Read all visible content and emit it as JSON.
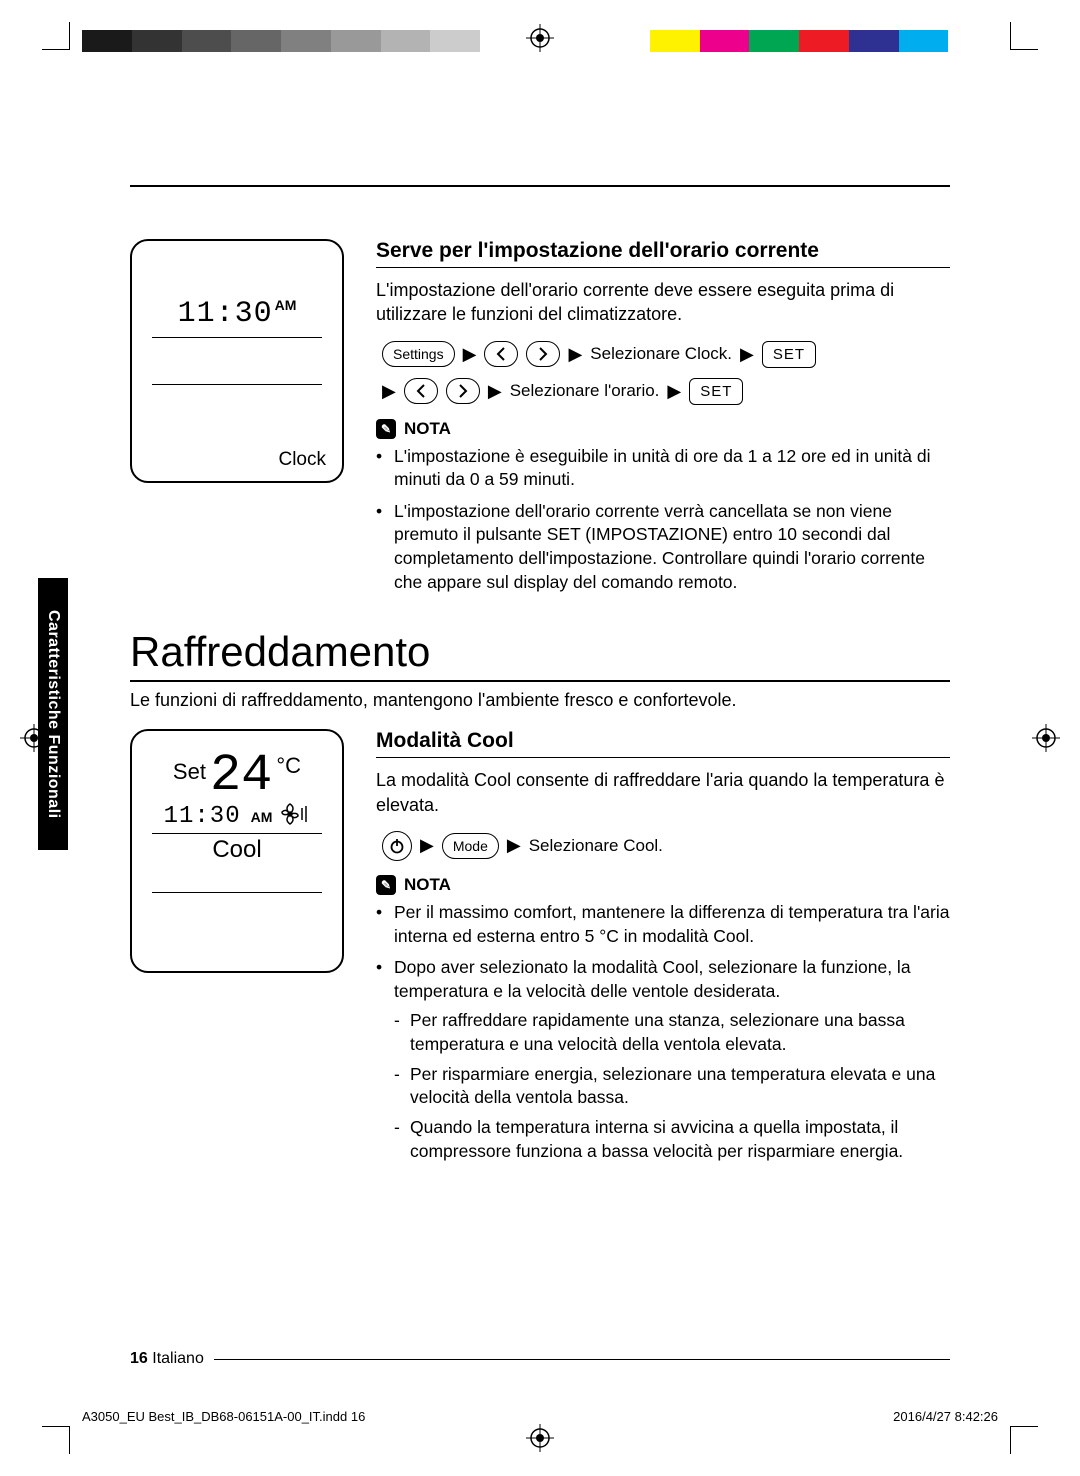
{
  "print": {
    "color_bar": [
      "#1a1a1a",
      "#333333",
      "#4d4d4d",
      "#666666",
      "#808080",
      "#999999",
      "#b3b3b3",
      "#cccccc",
      "#ffffff",
      "#fff200",
      "#ec008c",
      "#00a651",
      "#ed1c24",
      "#2e3192",
      "#00aeef",
      "#ffffff"
    ],
    "slug_left": "A3050_EU Best_IB_DB68-06151A-00_IT.indd   16",
    "slug_right": "2016/4/27   8:42:26"
  },
  "side_tab": "Caratteristiche Funzionali",
  "section1": {
    "subhead": "Serve per l'impostazione dell'orario corrente",
    "para": "L'impostazione dell'orario corrente deve essere eseguita prima di utilizzare le funzioni del climatizzatore.",
    "panel": {
      "time": "11:30",
      "ampm": "AM",
      "label": "Clock"
    },
    "steps": {
      "settings_btn": "Settings",
      "sel_clock": "Selezionare Clock.",
      "set_btn": "SET",
      "sel_time": "Selezionare l'orario."
    },
    "nota_label": "NOTA",
    "nota": [
      "L'impostazione è eseguibile in unità di ore da 1 a 12 ore ed in unità di minuti da 0 a 59 minuti.",
      "L'impostazione dell'orario corrente verrà cancellata se non viene  premuto il pulsante SET (IMPOSTAZIONE) entro 10 secondi dal completamento dell'impostazione. Controllare quindi l'orario corrente che appare sul display del comando remoto."
    ]
  },
  "section2": {
    "title": "Raffreddamento",
    "intro": "Le funzioni di raffreddamento, mantengono l'ambiente fresco e confortevole.",
    "subhead": "Modalità Cool",
    "para": "La modalità Cool consente di raffreddare l'aria quando la temperatura è elevata.",
    "panel": {
      "set_label": "Set",
      "temp": "24",
      "unit": "°C",
      "time": "11:30",
      "ampm": "AM",
      "mode": "Cool"
    },
    "steps": {
      "mode_btn": "Mode",
      "sel_cool": "Selezionare Cool."
    },
    "nota_label": "NOTA",
    "nota_items": [
      {
        "text": "Per il massimo comfort, mantenere la differenza di temperatura tra l'aria interna ed esterna entro 5 °C in modalità Cool."
      },
      {
        "text": "Dopo aver selezionato la modalità Cool, selezionare la funzione, la temperatura e la velocità delle ventole desiderata.",
        "sub": [
          "Per raffreddare rapidamente una stanza, selezionare una bassa temperatura e una velocità della ventola elevata.",
          "Per risparmiare energia, selezionare una temperatura elevata e una velocità della ventola bassa.",
          "Quando la temperatura interna si avvicina a quella impostata, il compressore funziona a bassa velocità per risparmiare energia."
        ]
      }
    ]
  },
  "footer": {
    "page": "16",
    "lang": "Italiano"
  }
}
